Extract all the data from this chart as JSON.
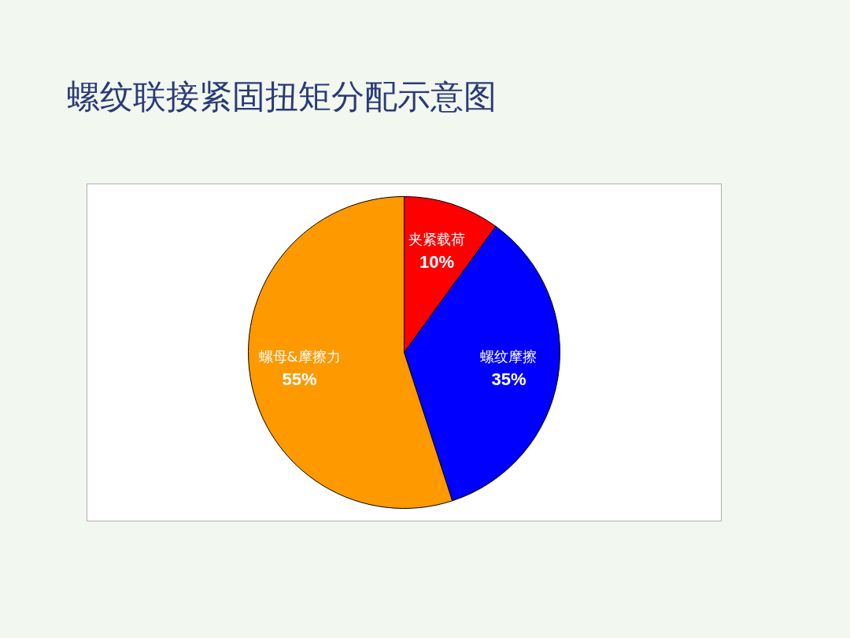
{
  "chart_data": {
    "type": "pie",
    "title": "螺纹联接紧固扭矩分配示意图",
    "categories": [
      "夹紧载荷",
      "螺纹摩擦",
      "螺母&摩擦力"
    ],
    "values": [
      10,
      35,
      55
    ],
    "colors": [
      "#ff0000",
      "#0000ff",
      "#ff9900"
    ],
    "value_labels": [
      "10%",
      "35%",
      "55%"
    ],
    "legend": false
  }
}
